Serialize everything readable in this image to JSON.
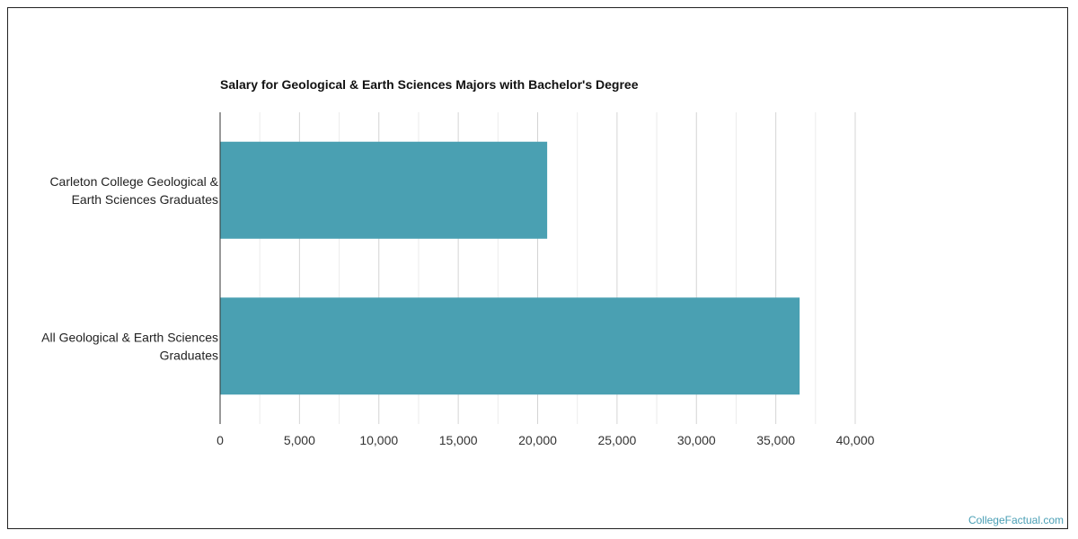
{
  "chart_data": {
    "type": "bar",
    "orientation": "horizontal",
    "title": "Salary for Geological & Earth Sciences Majors with Bachelor's Degree",
    "categories": [
      [
        "Carleton College Geological &",
        "Earth Sciences Graduates"
      ],
      [
        "All Geological & Earth Sciences",
        "Graduates"
      ]
    ],
    "values": [
      20600,
      36500
    ],
    "xlim": [
      0,
      40000
    ],
    "ticks": [
      0,
      5000,
      10000,
      15000,
      20000,
      25000,
      30000,
      35000,
      40000
    ],
    "tick_labels": [
      "0",
      "5,000",
      "10,000",
      "15,000",
      "20,000",
      "25,000",
      "30,000",
      "35,000",
      "40,000"
    ],
    "grid": true,
    "bar_color": "#4aa0b2",
    "gridline_color": "#d4d4d4",
    "minor_gridline_color": "#ececec"
  },
  "credit": "CollegeFactual.com",
  "colors": {
    "credit": "#4a9fb5"
  }
}
